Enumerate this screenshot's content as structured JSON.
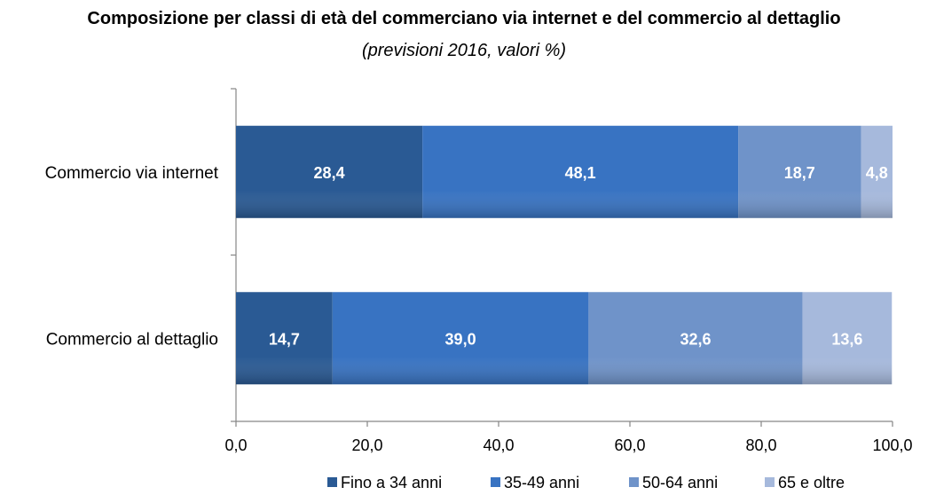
{
  "chart_data": {
    "type": "bar",
    "orientation": "horizontal",
    "stacked": true,
    "title": "Composizione per classi di età del commerciano via internet e del commercio al dettaglio",
    "subtitle": "(previsioni 2016, valori %)",
    "categories": [
      "Commercio via internet",
      "Commercio al dettaglio"
    ],
    "series": [
      {
        "name": "Fino a 34 anni",
        "values": [
          28.4,
          14.7
        ],
        "labels": [
          "28,4",
          "14,7"
        ],
        "color": "#2a5a94"
      },
      {
        "name": "35-49 anni",
        "values": [
          48.1,
          39.0
        ],
        "labels": [
          "48,1",
          "39,0"
        ],
        "color": "#3873c2"
      },
      {
        "name": "50-64 anni",
        "values": [
          18.7,
          32.6
        ],
        "labels": [
          "18,7",
          "32,6"
        ],
        "color": "#6f93c9"
      },
      {
        "name": "65 e oltre",
        "values": [
          4.8,
          13.6
        ],
        "labels": [
          "4,8",
          "13,6"
        ],
        "color": "#a6b9dc"
      }
    ],
    "xlim": [
      0,
      100
    ],
    "xticks": [
      0,
      20,
      40,
      60,
      80,
      100
    ],
    "xtick_labels": [
      "0,0",
      "20,0",
      "40,0",
      "60,0",
      "80,0",
      "100,0"
    ],
    "grid": false,
    "legend_position": "bottom"
  }
}
